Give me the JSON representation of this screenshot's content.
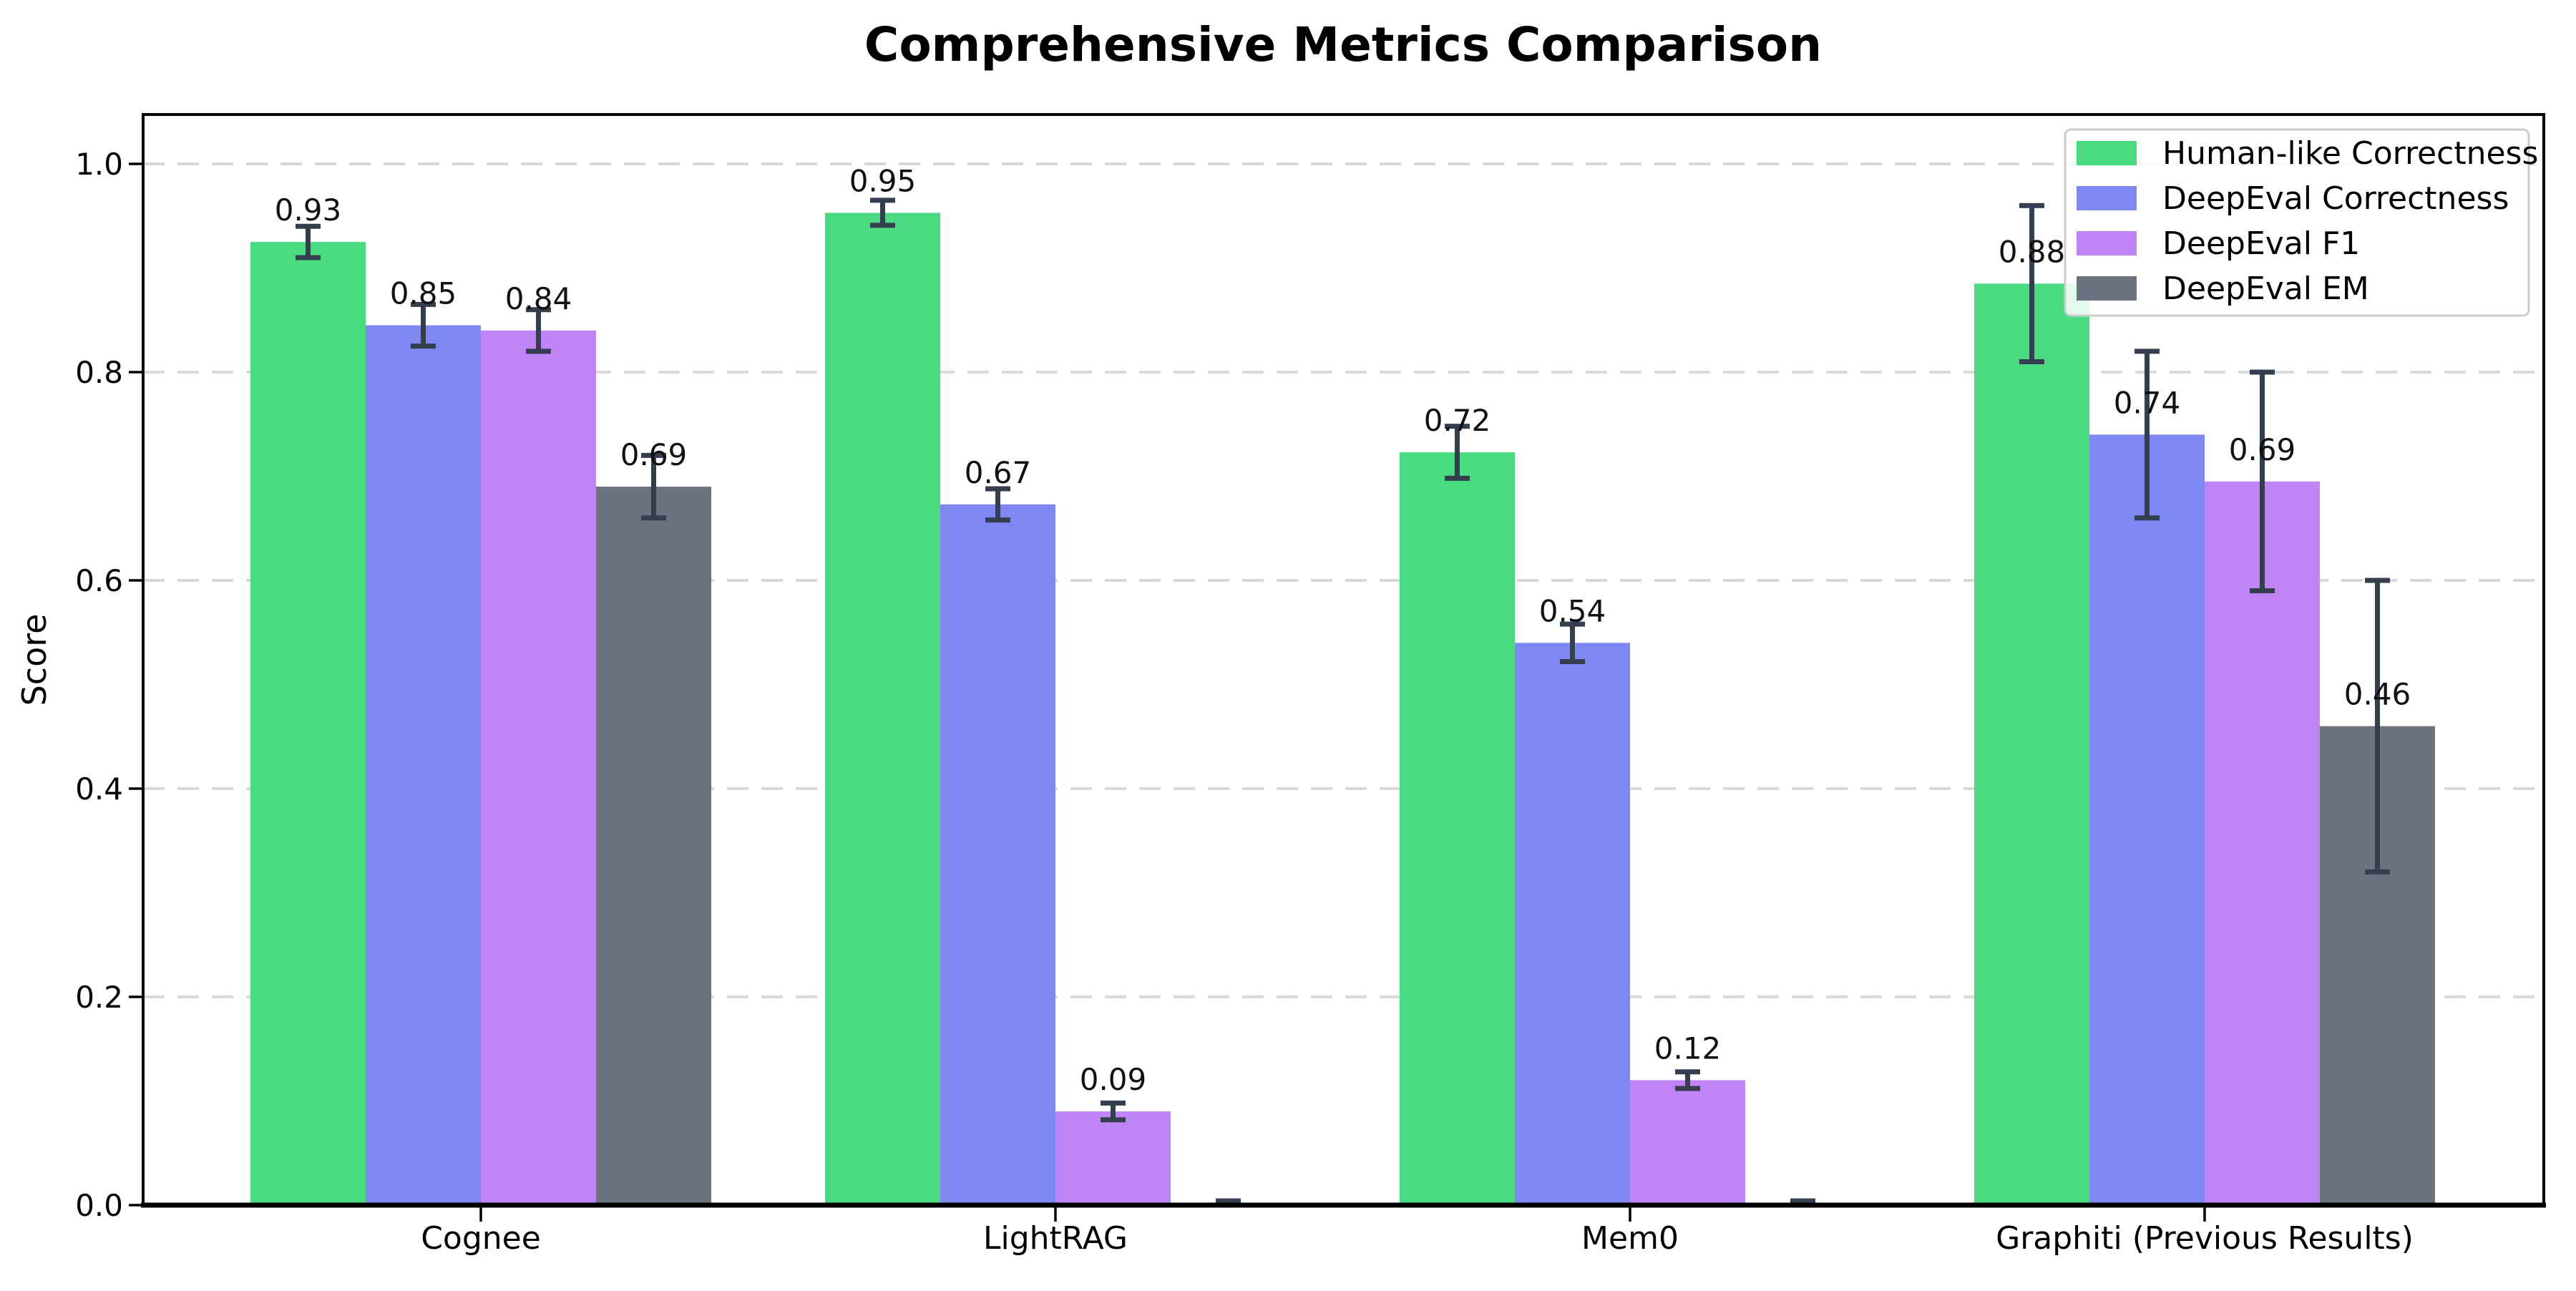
{
  "page": {
    "background": "#ffffff"
  },
  "chart_data": {
    "type": "bar",
    "title": "Comprehensive Metrics Comparison",
    "ylabel": "Score",
    "xlabel": "",
    "categories": [
      "Cognee",
      "LightRAG",
      "Mem0",
      "Graphiti (Previous Results)"
    ],
    "series": [
      {
        "name": "Human-like Correctness",
        "color": "#4ada82",
        "values": [
          0.925,
          0.953,
          0.723,
          0.885
        ],
        "errors": [
          0.015,
          0.012,
          0.025,
          0.075
        ],
        "labels": [
          "0.93",
          "0.95",
          "0.72",
          "0.88"
        ]
      },
      {
        "name": "DeepEval Correctness",
        "color": "#7e88f0",
        "values": [
          0.845,
          0.673,
          0.54,
          0.74
        ],
        "errors": [
          0.02,
          0.015,
          0.018,
          0.08
        ],
        "labels": [
          "0.85",
          "0.67",
          "0.54",
          "0.74"
        ]
      },
      {
        "name": "DeepEval F1",
        "color": "#bf84f5",
        "values": [
          0.84,
          0.09,
          0.12,
          0.695
        ],
        "errors": [
          0.02,
          0.008,
          0.008,
          0.105
        ],
        "labels": [
          "0.84",
          "0.09",
          "0.12",
          "0.69"
        ]
      },
      {
        "name": "DeepEval EM",
        "color": "#6b7280",
        "values": [
          0.69,
          0.0,
          0.0,
          0.46
        ],
        "errors": [
          0.03,
          0.004,
          0.004,
          0.14
        ],
        "labels": [
          "0.69",
          "",
          "",
          "0.46"
        ]
      }
    ],
    "ylim": [
      0,
      1.047
    ],
    "yticks": {
      "values": [
        0,
        0.2,
        0.4,
        0.6,
        0.8,
        1.0
      ],
      "labels": [
        "0.0",
        "0.2",
        "0.4",
        "0.6",
        "0.8",
        "1.0"
      ]
    },
    "grid": {
      "axis": "y",
      "style": "dashed",
      "color": "#d9d9d9"
    },
    "legend": {
      "position": "upper right",
      "border_color": "#cccccc",
      "background": "rgba(255,255,255,0.85)"
    },
    "colors": {
      "error_bar": "#343e4e",
      "spine": "#000000",
      "bar_value_text": "#111111"
    }
  }
}
